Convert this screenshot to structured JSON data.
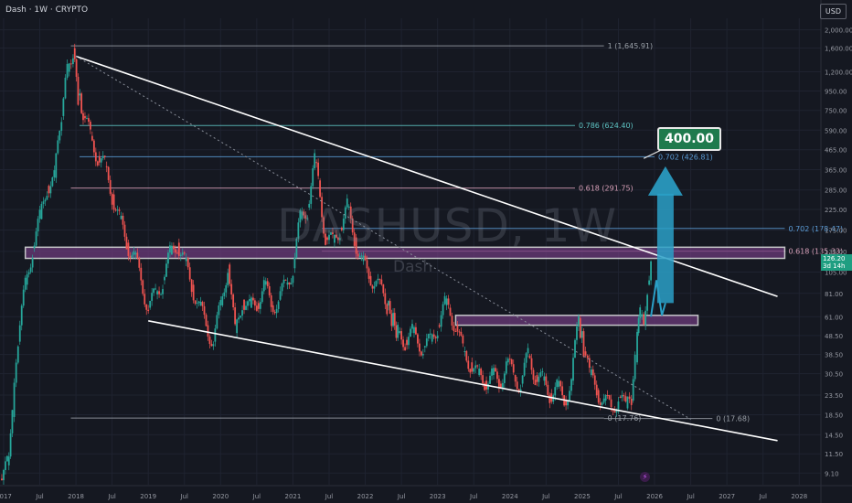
{
  "header": {
    "title": "Dash · 1W · CRYPTO",
    "currency_button": "USD"
  },
  "watermark": {
    "symbol": "DASHUSD, 1W",
    "name": "Dash"
  },
  "target_label": "400.00",
  "current_price": {
    "value": "126.20",
    "countdown": "3d 14h"
  },
  "colors": {
    "up": "#26a69a",
    "down": "#ef5350",
    "trend": "#ffffff",
    "fib_blue": "#5b9bd5",
    "fib_pink": "#d8a0b8",
    "fib_teal": "#5ec4c4",
    "arrow": "#2aa0c7",
    "zone": "#6b3a7a",
    "background": "#151821"
  },
  "chart_data": {
    "type": "line",
    "title": "Dash · 1W · CRYPTO",
    "scale": "log",
    "y_ticks": [
      2000,
      1600,
      1200,
      950,
      750,
      590,
      465,
      365,
      285,
      225,
      175,
      135,
      105,
      81,
      61,
      48.5,
      38.5,
      30.5,
      23.5,
      18.5,
      14.5,
      11.5,
      9.1
    ],
    "y_tick_labels": [
      "2,000.00",
      "1,600.00",
      "1,200.00",
      "950.00",
      "750.00",
      "590.00",
      "465.00",
      "365.00",
      "285.00",
      "225.00",
      "175.00",
      "135.00",
      "105.00",
      "81.00",
      "61.00",
      "48.50",
      "38.50",
      "30.50",
      "23.50",
      "18.50",
      "14.50",
      "11.50",
      "9.10"
    ],
    "x_tick_labels": [
      "2017",
      "Jul",
      "2018",
      "Jul",
      "2019",
      "Jul",
      "2020",
      "Jul",
      "2021",
      "Jul",
      "2022",
      "Jul",
      "2023",
      "Jul",
      "2024",
      "Jul",
      "2025",
      "Jul",
      "2026",
      "Jul",
      "2027",
      "Jul",
      "2028"
    ],
    "x_ticks": [
      2017.0,
      2017.5,
      2018.0,
      2018.5,
      2019.0,
      2019.5,
      2020.0,
      2020.5,
      2021.0,
      2021.5,
      2022.0,
      2022.5,
      2023.0,
      2023.5,
      2024.0,
      2024.5,
      2025.0,
      2025.5,
      2026.0,
      2026.5,
      2027.0,
      2027.5,
      2028.0
    ],
    "x_range": [
      2016.95,
      2028.3
    ],
    "y_range": [
      7.9,
      2300
    ],
    "price_path": [
      [
        2016.95,
        8.5
      ],
      [
        2017.05,
        10
      ],
      [
        2017.12,
        18
      ],
      [
        2017.2,
        45
      ],
      [
        2017.3,
        90
      ],
      [
        2017.4,
        140
      ],
      [
        2017.5,
        200
      ],
      [
        2017.6,
        300
      ],
      [
        2017.7,
        330
      ],
      [
        2017.8,
        700
      ],
      [
        2017.88,
        1200
      ],
      [
        2017.96,
        1600
      ],
      [
        2018.03,
        900
      ],
      [
        2018.1,
        700
      ],
      [
        2018.2,
        550
      ],
      [
        2018.3,
        430
      ],
      [
        2018.4,
        380
      ],
      [
        2018.5,
        270
      ],
      [
        2018.6,
        200
      ],
      [
        2018.7,
        150
      ],
      [
        2018.8,
        130
      ],
      [
        2018.9,
        95
      ],
      [
        2019.0,
        68
      ],
      [
        2019.1,
        80
      ],
      [
        2019.2,
        95
      ],
      [
        2019.3,
        130
      ],
      [
        2019.4,
        150
      ],
      [
        2019.5,
        120
      ],
      [
        2019.6,
        90
      ],
      [
        2019.7,
        70
      ],
      [
        2019.8,
        55
      ],
      [
        2019.9,
        45
      ],
      [
        2020.0,
        70
      ],
      [
        2020.1,
        115
      ],
      [
        2020.2,
        50
      ],
      [
        2020.3,
        75
      ],
      [
        2020.4,
        68
      ],
      [
        2020.5,
        72
      ],
      [
        2020.6,
        90
      ],
      [
        2020.7,
        70
      ],
      [
        2020.8,
        75
      ],
      [
        2020.9,
        90
      ],
      [
        2021.0,
        110
      ],
      [
        2021.1,
        200
      ],
      [
        2021.2,
        230
      ],
      [
        2021.3,
        400
      ],
      [
        2021.35,
        320
      ],
      [
        2021.45,
        160
      ],
      [
        2021.55,
        150
      ],
      [
        2021.65,
        180
      ],
      [
        2021.75,
        230
      ],
      [
        2021.85,
        160
      ],
      [
        2021.95,
        120
      ],
      [
        2022.05,
        100
      ],
      [
        2022.15,
        95
      ],
      [
        2022.3,
        70
      ],
      [
        2022.45,
        50
      ],
      [
        2022.55,
        46
      ],
      [
        2022.65,
        50
      ],
      [
        2022.8,
        42
      ],
      [
        2022.9,
        45
      ],
      [
        2023.0,
        55
      ],
      [
        2023.1,
        70
      ],
      [
        2023.15,
        68
      ],
      [
        2023.25,
        55
      ],
      [
        2023.35,
        40
      ],
      [
        2023.45,
        35
      ],
      [
        2023.55,
        30
      ],
      [
        2023.65,
        28
      ],
      [
        2023.75,
        30
      ],
      [
        2023.85,
        27
      ],
      [
        2023.95,
        35
      ],
      [
        2024.05,
        30
      ],
      [
        2024.15,
        27
      ],
      [
        2024.25,
        38
      ],
      [
        2024.35,
        30
      ],
      [
        2024.45,
        28
      ],
      [
        2024.55,
        24
      ],
      [
        2024.65,
        26
      ],
      [
        2024.75,
        22
      ],
      [
        2024.85,
        28
      ],
      [
        2024.95,
        60
      ],
      [
        2025.02,
        40
      ],
      [
        2025.1,
        30
      ],
      [
        2025.2,
        25
      ],
      [
        2025.3,
        22
      ],
      [
        2025.4,
        20
      ],
      [
        2025.5,
        23
      ],
      [
        2025.6,
        20
      ],
      [
        2025.68,
        22
      ],
      [
        2025.73,
        35
      ],
      [
        2025.76,
        50
      ],
      [
        2025.8,
        61
      ],
      [
        2025.85,
        55
      ],
      [
        2025.9,
        90
      ],
      [
        2025.95,
        126
      ]
    ],
    "fibonacci": [
      {
        "label": "1 (1,645.91)",
        "value": 1645.91,
        "x_start": 2017.93,
        "x_end": 2025.3
      },
      {
        "label": "0.786 (624.40)",
        "value": 624.4,
        "x_start": 2018.05,
        "x_end": 2024.9
      },
      {
        "label": "0.702 (426.81)",
        "value": 426.81,
        "x_start": 2018.05,
        "x_end": 2026.0
      },
      {
        "label": "0.618 (291.75)",
        "value": 291.75,
        "x_start": 2017.93,
        "x_end": 2024.9
      },
      {
        "label": "0.702 (178.47)",
        "value": 178.47,
        "x_start": 2021.4,
        "x_end": 2027.8
      },
      {
        "label": "0.618 (135.33)",
        "value": 135.33,
        "x_start": 2021.4,
        "x_end": 2027.8
      },
      {
        "label": "0 (17.76)",
        "value": 17.76,
        "x_start": 2017.93,
        "x_end": 2025.3
      },
      {
        "label": "0 (17.68)",
        "value": 17.68,
        "x_start": 2025.3,
        "x_end": 2026.8
      }
    ],
    "zones": [
      {
        "low": 124,
        "high": 142,
        "x_start": 2017.3,
        "x_end": 2027.8
      },
      {
        "low": 55,
        "high": 62,
        "x_start": 2023.25,
        "x_end": 2026.6
      }
    ],
    "trendlines": [
      {
        "from": [
          2018.0,
          1450
        ],
        "to": [
          2027.7,
          78
        ]
      },
      {
        "from": [
          2019.0,
          58
        ],
        "to": [
          2027.7,
          13.5
        ]
      }
    ],
    "dotted_line": {
      "from": [
        2018.0,
        1450
      ],
      "to": [
        2026.5,
        17.5
      ]
    },
    "projection_arrow": {
      "from": [
        2026.15,
        72
      ],
      "to": [
        2026.15,
        380
      ],
      "x_start": 2025.95
    },
    "target_value": 400.0
  }
}
